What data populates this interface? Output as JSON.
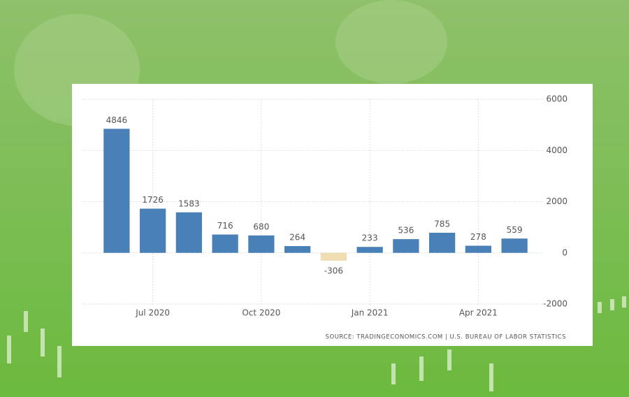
{
  "chart_data": {
    "type": "bar",
    "categories": [
      null,
      "Jul 2020",
      null,
      null,
      "Oct 2020",
      null,
      null,
      "Jan 2021",
      null,
      null,
      "Apr 2021",
      null
    ],
    "values": [
      4846,
      1726,
      1583,
      716,
      680,
      264,
      -306,
      233,
      536,
      785,
      278,
      559
    ],
    "color": "#4a80b8",
    "negative_color": "#f0ddb4",
    "ylim": [
      -2000,
      6000
    ],
    "yticks": [
      -2000,
      0,
      2000,
      4000,
      6000
    ],
    "grid": true,
    "source": "SOURCE: TRADINGECONOMICS.COM | U.S. BUREAU OF LABOR STATISTICS"
  }
}
